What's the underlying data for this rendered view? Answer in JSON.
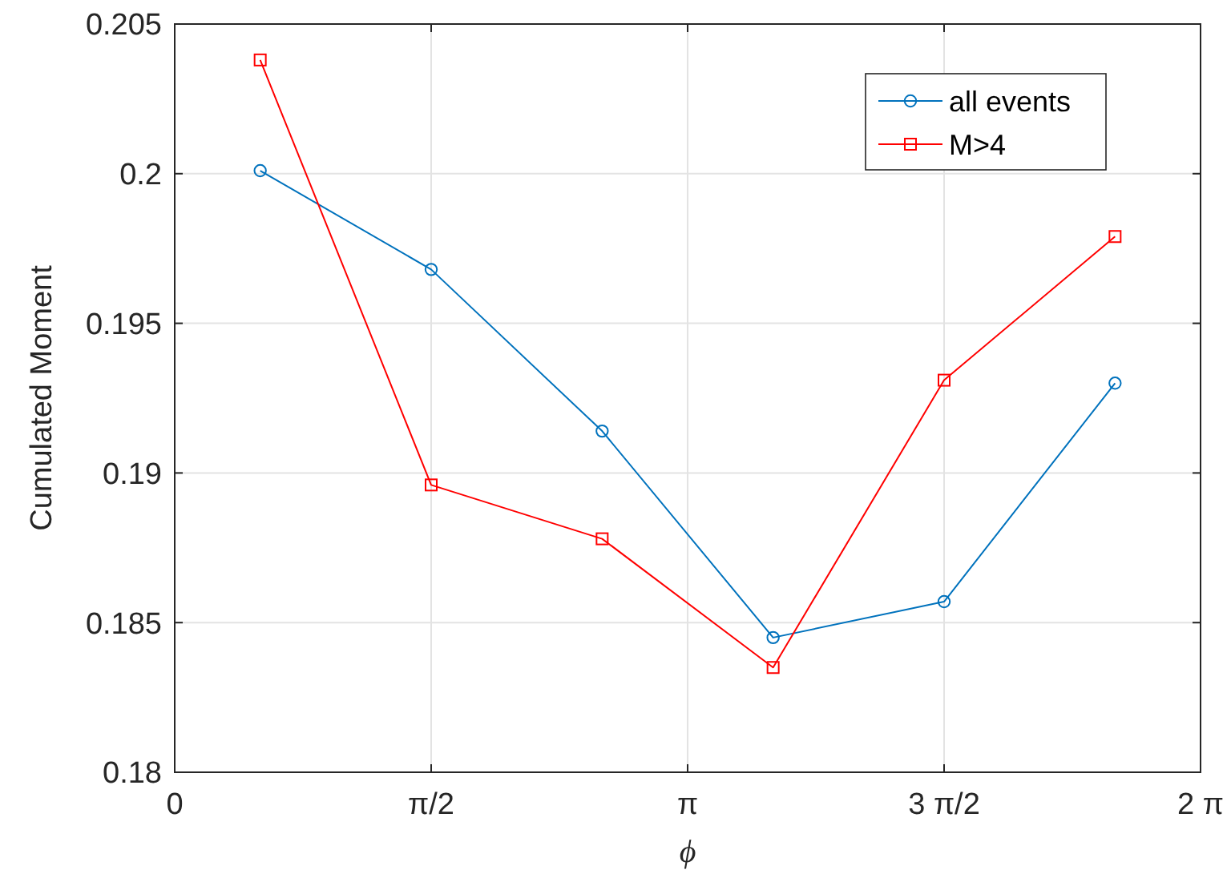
{
  "chart_data": {
    "type": "line",
    "xlabel": "ϕ",
    "ylabel": "Cumulated Moment",
    "x": [
      0.5236,
      1.5708,
      2.618,
      3.6652,
      4.7124,
      5.7596
    ],
    "series": [
      {
        "name": "all events",
        "color": "#0072bd",
        "marker": "circle",
        "values": [
          0.2001,
          0.1968,
          0.1914,
          0.1845,
          0.1857,
          0.193
        ]
      },
      {
        "name": "M>4",
        "color": "#ff0000",
        "marker": "square",
        "values": [
          0.2038,
          0.1896,
          0.1878,
          0.1835,
          0.1931,
          0.1979
        ]
      }
    ],
    "xlim": [
      0,
      6.2832
    ],
    "xticks": [
      0,
      {
        "value": 1.5708,
        "label": "π/2"
      },
      {
        "value": 3.1416,
        "label": "π"
      },
      {
        "value": 4.7124,
        "label": "3 π/2"
      },
      {
        "value": 6.2832,
        "label": "2 π"
      }
    ],
    "ylim": [
      0.18,
      0.205
    ],
    "yticks": [
      0.18,
      0.185,
      0.19,
      0.195,
      0.2,
      0.205
    ],
    "grid": true,
    "legend": "top right",
    "line_style": "solid"
  }
}
